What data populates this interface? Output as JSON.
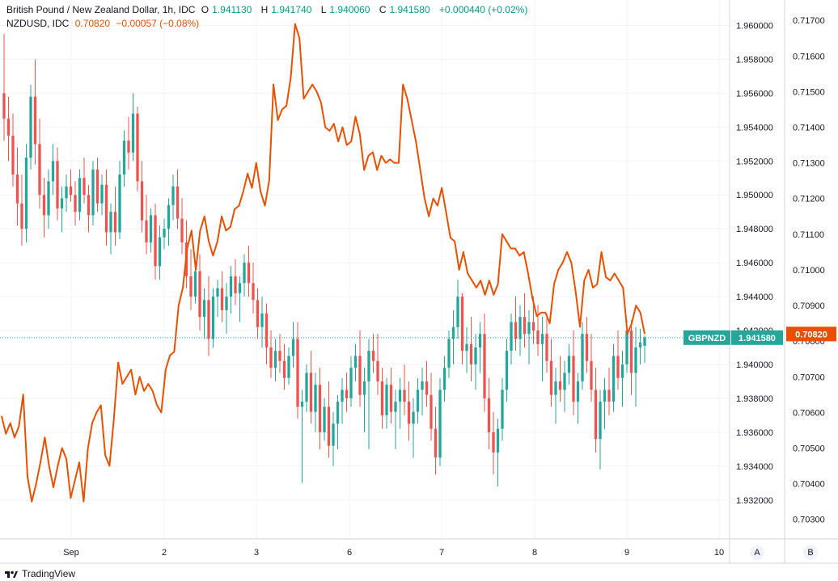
{
  "legend": {
    "symbol": "British Pound / New Zealand Dollar, 1h, IDC",
    "o_label": "O",
    "o_value": "1.941130",
    "h_label": "H",
    "h_value": "1.941740",
    "l_label": "L",
    "l_value": "1.940060",
    "c_label": "C",
    "c_value": "1.941580",
    "change": "+0.000440 (+0.02%)",
    "overlay_symbol": "NZDUSD, IDC",
    "overlay_value": "0.70820",
    "overlay_change": "−0.00057 (−0.08%)"
  },
  "axis_buttons": {
    "a": "A",
    "b": "B"
  },
  "footer": {
    "brand": "TradingView"
  },
  "colors": {
    "up": "#26a69a",
    "down": "#ef5350",
    "overlay": "#e65100",
    "grid": "#f0f3fa"
  },
  "chart_data": [
    {
      "type": "candlestick",
      "series_name": "GBPNZD",
      "x_ticks": [
        "Sep",
        "2",
        "3",
        "6",
        "7",
        "8",
        "9",
        "10"
      ],
      "y_ticks": [
        "1.960000",
        "1.958000",
        "1.956000",
        "1.954000",
        "1.952000",
        "1.950000",
        "1.948000",
        "1.946000",
        "1.944000",
        "1.942000",
        "1.940000",
        "1.938000",
        "1.936000",
        "1.934000",
        "1.932000"
      ],
      "ylim": [
        1.9297,
        1.9615
      ],
      "last_value": "1.941580",
      "last_label": "GBPNZD",
      "ohlc": [
        [
          1.956,
          1.9595,
          1.9532,
          1.9545
        ],
        [
          1.9545,
          1.9558,
          1.952,
          1.9535
        ],
        [
          1.9535,
          1.9548,
          1.9505,
          1.9512
        ],
        [
          1.9512,
          1.9528,
          1.9482,
          1.9495
        ],
        [
          1.9495,
          1.9512,
          1.947,
          1.948
        ],
        [
          1.948,
          1.953,
          1.9472,
          1.9522
        ],
        [
          1.9522,
          1.9565,
          1.9515,
          1.9558
        ],
        [
          1.9558,
          1.958,
          1.9518,
          1.953
        ],
        [
          1.953,
          1.9545,
          1.9492,
          1.95
        ],
        [
          1.95,
          1.951,
          1.9475,
          1.9488
        ],
        [
          1.9488,
          1.9515,
          1.948,
          1.9508
        ],
        [
          1.9508,
          1.953,
          1.95,
          1.952
        ],
        [
          1.952,
          1.9528,
          1.9485,
          1.9492
        ],
        [
          1.9492,
          1.9505,
          1.9478,
          1.9498
        ],
        [
          1.9498,
          1.9512,
          1.949,
          1.9505
        ],
        [
          1.9505,
          1.9515,
          1.9496,
          1.95
        ],
        [
          1.95,
          1.9508,
          1.9482,
          1.949
        ],
        [
          1.949,
          1.9515,
          1.9485,
          1.951
        ],
        [
          1.951,
          1.9522,
          1.9495,
          1.95
        ],
        [
          1.95,
          1.9506,
          1.9478,
          1.9488
        ],
        [
          1.9488,
          1.952,
          1.9482,
          1.9515
        ],
        [
          1.9515,
          1.9522,
          1.949,
          1.9495
        ],
        [
          1.9495,
          1.9512,
          1.9488,
          1.9506
        ],
        [
          1.9506,
          1.9515,
          1.947,
          1.9478
        ],
        [
          1.9478,
          1.9495,
          1.9465,
          1.949
        ],
        [
          1.949,
          1.9505,
          1.947,
          1.9478
        ],
        [
          1.9478,
          1.952,
          1.9474,
          1.9512
        ],
        [
          1.9512,
          1.9538,
          1.9505,
          1.9532
        ],
        [
          1.9532,
          1.9546,
          1.9515,
          1.9525
        ],
        [
          1.9525,
          1.956,
          1.952,
          1.9548
        ],
        [
          1.9548,
          1.9552,
          1.9502,
          1.9508
        ],
        [
          1.9508,
          1.952,
          1.9478,
          1.9485
        ],
        [
          1.9485,
          1.95,
          1.9465,
          1.9472
        ],
        [
          1.9472,
          1.9492,
          1.9466,
          1.9488
        ],
        [
          1.9488,
          1.9495,
          1.945,
          1.9458
        ],
        [
          1.9458,
          1.9482,
          1.945,
          1.9475
        ],
        [
          1.9475,
          1.9486,
          1.9468,
          1.948
        ],
        [
          1.948,
          1.9498,
          1.947,
          1.9494
        ],
        [
          1.9494,
          1.9512,
          1.9485,
          1.9505
        ],
        [
          1.9505,
          1.9515,
          1.948,
          1.9486
        ],
        [
          1.9486,
          1.9498,
          1.9465,
          1.9472
        ],
        [
          1.9472,
          1.9485,
          1.9445,
          1.9452
        ],
        [
          1.9452,
          1.9468,
          1.9432,
          1.944
        ],
        [
          1.944,
          1.946,
          1.9436,
          1.9455
        ],
        [
          1.9455,
          1.9465,
          1.942,
          1.9428
        ],
        [
          1.9428,
          1.9445,
          1.9415,
          1.9438
        ],
        [
          1.9438,
          1.9452,
          1.9405,
          1.9415
        ],
        [
          1.9415,
          1.9445,
          1.941,
          1.944
        ],
        [
          1.944,
          1.945,
          1.9428,
          1.9445
        ],
        [
          1.9445,
          1.9455,
          1.9425,
          1.9432
        ],
        [
          1.9432,
          1.9448,
          1.9418,
          1.944
        ],
        [
          1.944,
          1.9458,
          1.943,
          1.9452
        ],
        [
          1.9452,
          1.9462,
          1.9435,
          1.9442
        ],
        [
          1.9442,
          1.9452,
          1.9425,
          1.9448
        ],
        [
          1.9448,
          1.9465,
          1.944,
          1.946
        ],
        [
          1.946,
          1.947,
          1.944,
          1.9448
        ],
        [
          1.9448,
          1.946,
          1.943,
          1.9438
        ],
        [
          1.9438,
          1.9445,
          1.9415,
          1.9422
        ],
        [
          1.9422,
          1.944,
          1.941,
          1.943
        ],
        [
          1.943,
          1.9436,
          1.94,
          1.941
        ],
        [
          1.941,
          1.942,
          1.9392,
          1.9398
        ],
        [
          1.9398,
          1.9415,
          1.939,
          1.9408
        ],
        [
          1.9408,
          1.9418,
          1.9395,
          1.9402
        ],
        [
          1.9402,
          1.9412,
          1.9385,
          1.9392
        ],
        [
          1.9392,
          1.941,
          1.9388,
          1.9405
        ],
        [
          1.9405,
          1.9425,
          1.9398,
          1.9415
        ],
        [
          1.9415,
          1.9425,
          1.9368,
          1.9375
        ],
        [
          1.9375,
          1.9385,
          1.933,
          1.9378
        ],
        [
          1.9378,
          1.94,
          1.9372,
          1.9395
        ],
        [
          1.9395,
          1.9408,
          1.9365,
          1.9372
        ],
        [
          1.9372,
          1.9395,
          1.936,
          1.9388
        ],
        [
          1.9388,
          1.9398,
          1.935,
          1.936
        ],
        [
          1.936,
          1.938,
          1.9355,
          1.9375
        ],
        [
          1.9375,
          1.939,
          1.9345,
          1.9352
        ],
        [
          1.9352,
          1.9372,
          1.934,
          1.9365
        ],
        [
          1.9365,
          1.9382,
          1.935,
          1.9378
        ],
        [
          1.9378,
          1.9392,
          1.9365,
          1.9385
        ],
        [
          1.9385,
          1.9395,
          1.9372,
          1.938
        ],
        [
          1.938,
          1.9405,
          1.9375,
          1.9398
        ],
        [
          1.9398,
          1.9412,
          1.939,
          1.9405
        ],
        [
          1.9405,
          1.942,
          1.9375,
          1.9382
        ],
        [
          1.9382,
          1.9398,
          1.936,
          1.939
        ],
        [
          1.939,
          1.9415,
          1.935,
          1.9408
        ],
        [
          1.9408,
          1.9418,
          1.9395,
          1.9402
        ],
        [
          1.9402,
          1.9418,
          1.9382,
          1.939
        ],
        [
          1.939,
          1.9398,
          1.9362,
          1.937
        ],
        [
          1.937,
          1.9392,
          1.9362,
          1.9388
        ],
        [
          1.9388,
          1.9398,
          1.9365,
          1.9372
        ],
        [
          1.9372,
          1.9385,
          1.935,
          1.9378
        ],
        [
          1.9378,
          1.9392,
          1.9362,
          1.9385
        ],
        [
          1.9385,
          1.94,
          1.937,
          1.9378
        ],
        [
          1.9378,
          1.939,
          1.9355,
          1.9365
        ],
        [
          1.9365,
          1.938,
          1.9345,
          1.9372
        ],
        [
          1.9372,
          1.9392,
          1.9365,
          1.9385
        ],
        [
          1.9385,
          1.9398,
          1.937,
          1.939
        ],
        [
          1.939,
          1.9402,
          1.9375,
          1.9382
        ],
        [
          1.9382,
          1.9395,
          1.9355,
          1.9362
        ],
        [
          1.9362,
          1.9375,
          1.9335,
          1.9345
        ],
        [
          1.9345,
          1.9392,
          1.934,
          1.9385
        ],
        [
          1.9385,
          1.9405,
          1.9378,
          1.9398
        ],
        [
          1.9398,
          1.942,
          1.9392,
          1.9415
        ],
        [
          1.9415,
          1.9432,
          1.94,
          1.9422
        ],
        [
          1.9422,
          1.945,
          1.9415,
          1.944
        ],
        [
          1.944,
          1.9442,
          1.94,
          1.9408
        ],
        [
          1.9408,
          1.9422,
          1.9395,
          1.9412
        ],
        [
          1.9412,
          1.9428,
          1.939,
          1.94
        ],
        [
          1.94,
          1.9418,
          1.9385,
          1.941
        ],
        [
          1.941,
          1.9425,
          1.9395,
          1.9418
        ],
        [
          1.9418,
          1.943,
          1.9372,
          1.938
        ],
        [
          1.938,
          1.9392,
          1.935,
          1.936
        ],
        [
          1.936,
          1.9372,
          1.9335,
          1.9348
        ],
        [
          1.9348,
          1.9368,
          1.9328,
          1.9362
        ],
        [
          1.9362,
          1.9392,
          1.9355,
          1.9385
        ],
        [
          1.9385,
          1.9415,
          1.9378,
          1.9408
        ],
        [
          1.9408,
          1.943,
          1.94,
          1.9425
        ],
        [
          1.9425,
          1.944,
          1.9408,
          1.9415
        ],
        [
          1.9415,
          1.9435,
          1.9405,
          1.9428
        ],
        [
          1.9428,
          1.9442,
          1.941,
          1.9418
        ],
        [
          1.9418,
          1.9432,
          1.94,
          1.9425
        ],
        [
          1.9425,
          1.944,
          1.9412,
          1.942
        ],
        [
          1.942,
          1.9435,
          1.9405,
          1.9412
        ],
        [
          1.9412,
          1.9428,
          1.939,
          1.9418
        ],
        [
          1.9418,
          1.943,
          1.9395,
          1.9402
        ],
        [
          1.9402,
          1.9415,
          1.9375,
          1.9382
        ],
        [
          1.9382,
          1.9398,
          1.9365,
          1.939
        ],
        [
          1.939,
          1.9405,
          1.9378,
          1.9385
        ],
        [
          1.9385,
          1.9402,
          1.9372,
          1.9395
        ],
        [
          1.9395,
          1.9412,
          1.9388,
          1.9405
        ],
        [
          1.9405,
          1.942,
          1.937,
          1.9378
        ],
        [
          1.9378,
          1.9395,
          1.9365,
          1.939
        ],
        [
          1.939,
          1.9425,
          1.9385,
          1.9418
        ],
        [
          1.9418,
          1.9428,
          1.9395,
          1.9402
        ],
        [
          1.9402,
          1.9418,
          1.9378,
          1.9385
        ],
        [
          1.9385,
          1.9398,
          1.9348,
          1.9356
        ],
        [
          1.9356,
          1.9385,
          1.9338,
          1.9378
        ],
        [
          1.9378,
          1.9392,
          1.9362,
          1.9385
        ],
        [
          1.9385,
          1.9398,
          1.937,
          1.9378
        ],
        [
          1.9378,
          1.9412,
          1.9372,
          1.9405
        ],
        [
          1.9405,
          1.942,
          1.9385,
          1.9392
        ],
        [
          1.9392,
          1.9408,
          1.9375,
          1.94
        ],
        [
          1.94,
          1.9426,
          1.9395,
          1.942
        ],
        [
          1.942,
          1.9426,
          1.9382,
          1.9395
        ],
        [
          1.9395,
          1.9422,
          1.9375,
          1.941
        ],
        [
          1.941,
          1.9421,
          1.94,
          1.9413
        ],
        [
          1.9411,
          1.9417,
          1.9401,
          1.9416
        ]
      ]
    },
    {
      "type": "line",
      "series_name": "NZDUSD",
      "y_ticks": [
        "0.71700",
        "0.71600",
        "0.71500",
        "0.71400",
        "0.71300",
        "0.71200",
        "0.71100",
        "0.71000",
        "0.70900",
        "0.70800",
        "0.70700",
        "0.70600",
        "0.70500",
        "0.70400",
        "0.70300"
      ],
      "ylim": [
        0.70245,
        0.71757
      ],
      "last_value": "0.70820",
      "values": [
        0.7059,
        0.7054,
        0.7057,
        0.7053,
        0.7056,
        0.7065,
        0.7042,
        0.7035,
        0.704,
        0.7046,
        0.7053,
        0.7045,
        0.7039,
        0.7045,
        0.705,
        0.7047,
        0.7036,
        0.7041,
        0.7046,
        0.7035,
        0.705,
        0.7057,
        0.706,
        0.7062,
        0.7048,
        0.7045,
        0.7058,
        0.7074,
        0.7068,
        0.707,
        0.7072,
        0.7065,
        0.707,
        0.7066,
        0.7068,
        0.7066,
        0.7062,
        0.706,
        0.7072,
        0.7076,
        0.7077,
        0.709,
        0.7095,
        0.7106,
        0.7111,
        0.71,
        0.7111,
        0.7115,
        0.7108,
        0.7104,
        0.7108,
        0.7115,
        0.7111,
        0.7112,
        0.7117,
        0.7118,
        0.7122,
        0.7127,
        0.7123,
        0.713,
        0.7122,
        0.7118,
        0.7125,
        0.7152,
        0.7142,
        0.7145,
        0.7146,
        0.7154,
        0.7169,
        0.7165,
        0.7148,
        0.715,
        0.7152,
        0.715,
        0.7147,
        0.714,
        0.7139,
        0.7141,
        0.7136,
        0.714,
        0.7135,
        0.7136,
        0.7143,
        0.7138,
        0.7128,
        0.7132,
        0.7133,
        0.7128,
        0.7132,
        0.713,
        0.7131,
        0.713,
        0.713,
        0.7152,
        0.7148,
        0.7142,
        0.7136,
        0.7128,
        0.712,
        0.7115,
        0.712,
        0.7118,
        0.7123,
        0.7116,
        0.7109,
        0.7108,
        0.71,
        0.7105,
        0.7099,
        0.7097,
        0.7095,
        0.7097,
        0.7093,
        0.7097,
        0.7093,
        0.7096,
        0.711,
        0.7108,
        0.7106,
        0.7106,
        0.7104,
        0.7105,
        0.7099,
        0.7092,
        0.7087,
        0.7088,
        0.7088,
        0.7085,
        0.7096,
        0.71,
        0.7102,
        0.7105,
        0.7102,
        0.7094,
        0.7084,
        0.7097,
        0.71,
        0.7095,
        0.7096,
        0.7105,
        0.7098,
        0.7097,
        0.7099,
        0.7097,
        0.7095,
        0.7082,
        0.7085,
        0.709,
        0.7088,
        0.7082
      ]
    }
  ]
}
